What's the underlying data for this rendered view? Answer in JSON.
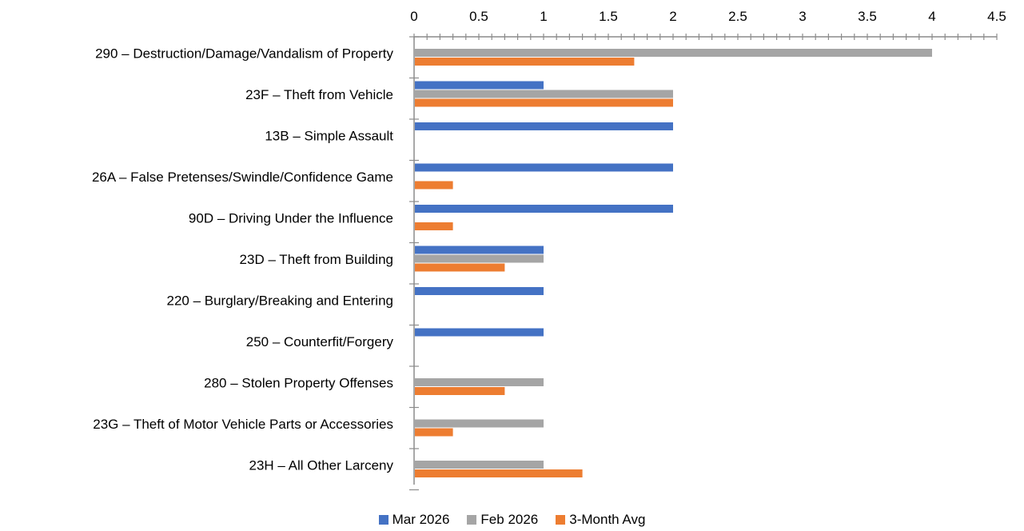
{
  "chart_data": {
    "type": "bar",
    "orientation": "horizontal",
    "x_axis_position": "top",
    "xlim": [
      0,
      4.5
    ],
    "x_ticks": [
      "0",
      "0.5",
      "1",
      "1.5",
      "2",
      "2.5",
      "3",
      "3.5",
      "4",
      "4.5"
    ],
    "categories": [
      "290 – Destruction/Damage/Vandalism of Property",
      "23F – Theft from Vehicle",
      "13B – Simple Assault",
      "26A – False Pretenses/Swindle/Confidence Game",
      "90D – Driving Under the Influence",
      "23D – Theft from Building",
      "220 – Burglary/Breaking and Entering",
      "250 – Counterfit/Forgery",
      "280 – Stolen Property Offenses",
      "23G – Theft of Motor Vehicle Parts or Accessories",
      "23H – All Other Larceny"
    ],
    "series": [
      {
        "name": "Mar 2026",
        "color": "#4472C4",
        "values": [
          0,
          1,
          2,
          2,
          2,
          1,
          1,
          1,
          0,
          0,
          0
        ]
      },
      {
        "name": "Feb 2026",
        "color": "#A5A5A5",
        "values": [
          4,
          2,
          0,
          0,
          0,
          1,
          0,
          0,
          1,
          1,
          1
        ]
      },
      {
        "name": "3-Month Avg",
        "color": "#ED7D31",
        "values": [
          1.7,
          2,
          0,
          0.3,
          0.3,
          0.7,
          0,
          0,
          0.7,
          0.3,
          1.3
        ]
      }
    ],
    "legend_position": "bottom",
    "grid": false
  }
}
